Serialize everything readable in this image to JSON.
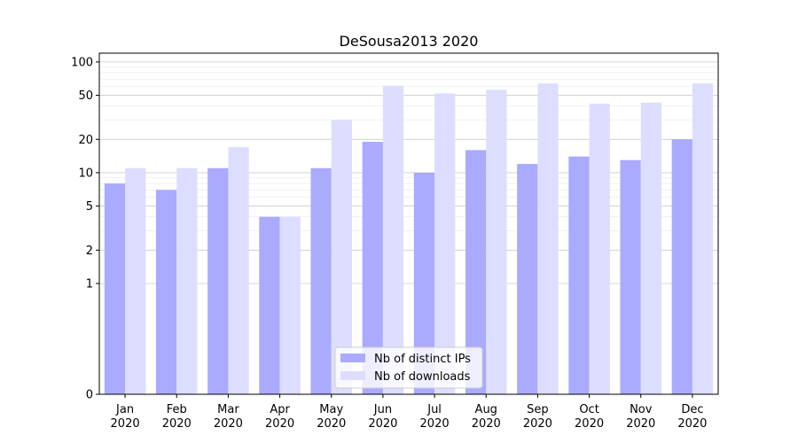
{
  "chart_data": {
    "type": "bar",
    "title": "DeSousa2013 2020",
    "xlabel": "",
    "ylabel": "",
    "yscale": "symlog",
    "ylim": [
      0,
      120
    ],
    "yticks": [
      0,
      1,
      2,
      5,
      10,
      20,
      50,
      100
    ],
    "ytick_labels": [
      "0",
      "1",
      "2",
      "5",
      "10",
      "20",
      "50",
      "100"
    ],
    "grid": true,
    "legend_position": "lower center",
    "categories": [
      "Jan\n2020",
      "Feb\n2020",
      "Mar\n2020",
      "Apr\n2020",
      "May\n2020",
      "Jun\n2020",
      "Jul\n2020",
      "Aug\n2020",
      "Sep\n2020",
      "Oct\n2020",
      "Nov\n2020",
      "Dec\n2020"
    ],
    "series": [
      {
        "name": "Nb of distinct IPs",
        "color": "#aaaaff",
        "values": [
          8,
          7,
          11,
          4,
          11,
          19,
          10,
          16,
          12,
          14,
          13,
          20
        ]
      },
      {
        "name": "Nb of downloads",
        "color": "#ddddff",
        "values": [
          11,
          11,
          17,
          4,
          30,
          61,
          52,
          56,
          64,
          42,
          43,
          64
        ]
      }
    ]
  }
}
